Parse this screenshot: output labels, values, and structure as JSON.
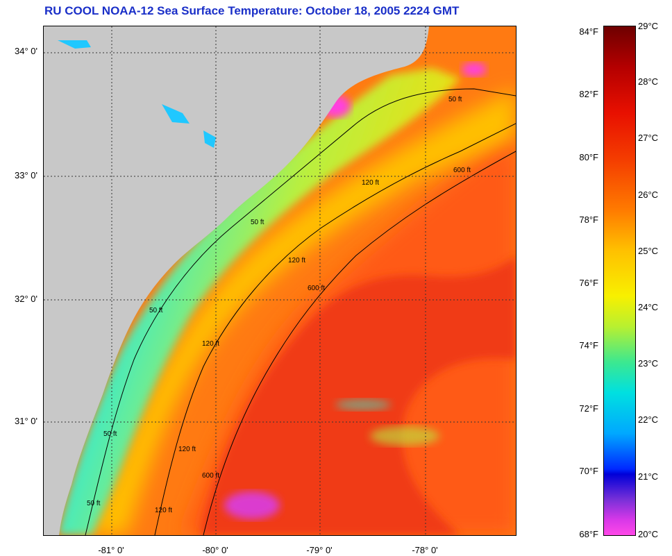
{
  "title": "RU COOL  NOAA-12  Sea Surface Temperature:  October 18, 2005 2224 GMT",
  "map": {
    "latitude_labels": [
      "34° 0'",
      "33° 0'",
      "32° 0'",
      "31° 0'"
    ],
    "longitude_labels": [
      "-81° 0'",
      "-80° 0'",
      "-79° 0'",
      "-78° 0'"
    ],
    "contour_labels": [
      "50 ft",
      "50 ft",
      "50 ft",
      "50 ft",
      "50 ft",
      "120 ft",
      "120 ft",
      "120 ft",
      "120 ft",
      "120 ft",
      "600 ft",
      "600 ft",
      "600 ft"
    ]
  },
  "colorbar": {
    "fahrenheit_labels": [
      "84°F",
      "82°F",
      "80°F",
      "78°F",
      "76°F",
      "74°F",
      "72°F",
      "70°F",
      "68°F"
    ],
    "celsius_labels": [
      "29°C",
      "28°C",
      "27°C",
      "26°C",
      "25°C",
      "24°C",
      "23°C",
      "22°C",
      "21°C",
      "20°C"
    ]
  },
  "colors": {
    "title": "#1a2fc8",
    "land": "#c8c8c8",
    "warm_core": "#f03a18",
    "shelf_cool": "#20e8e8"
  }
}
